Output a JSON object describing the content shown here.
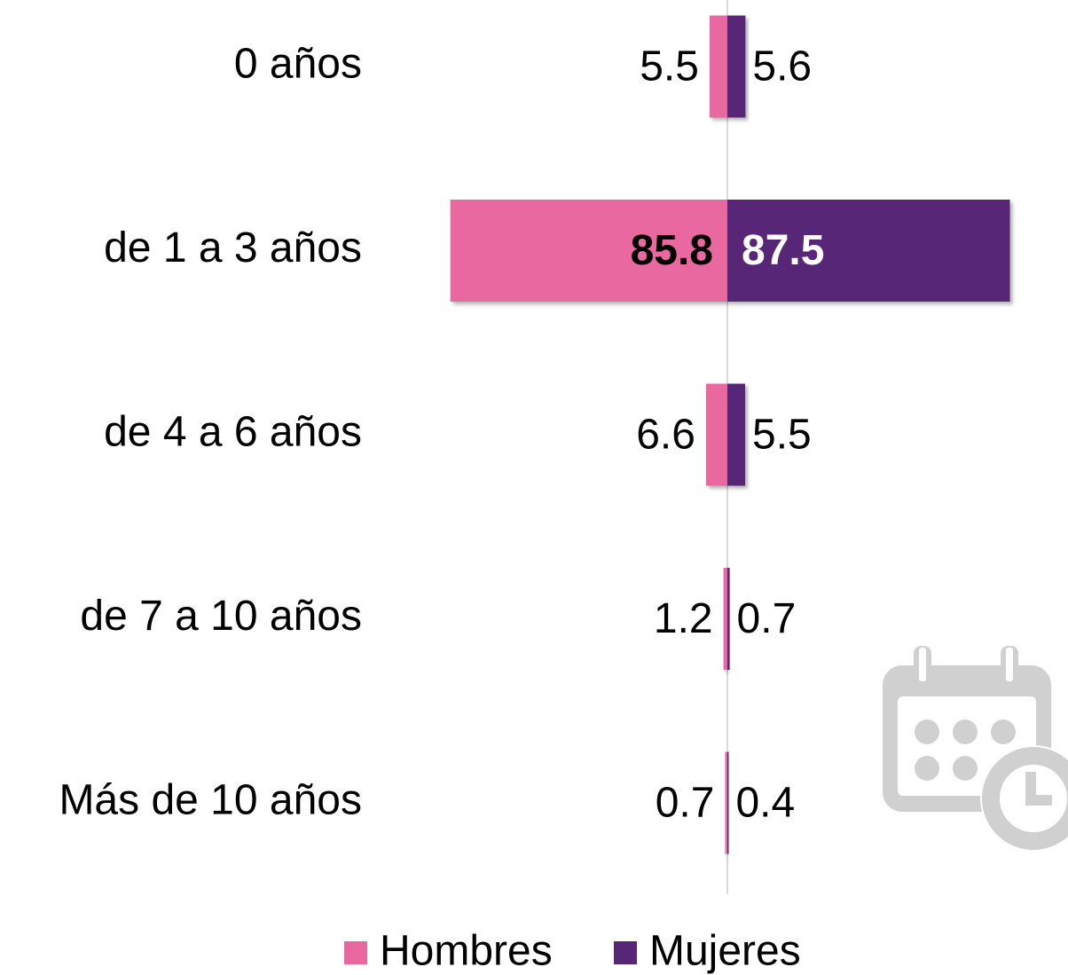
{
  "chart_data": {
    "type": "butterfly-bar",
    "categories": [
      "0 años",
      "de 1 a 3 años",
      "de 4 a 6 años",
      "de 7 a 10 años",
      "Más de 10 años"
    ],
    "series": [
      {
        "name": "Hombres",
        "color": "#e9679f",
        "values": [
          5.5,
          85.8,
          6.6,
          1.2,
          0.7
        ]
      },
      {
        "name": "Mujeres",
        "color": "#582677",
        "values": [
          5.6,
          87.5,
          5.5,
          0.7,
          0.4
        ]
      }
    ],
    "legend": "bottom"
  }
}
